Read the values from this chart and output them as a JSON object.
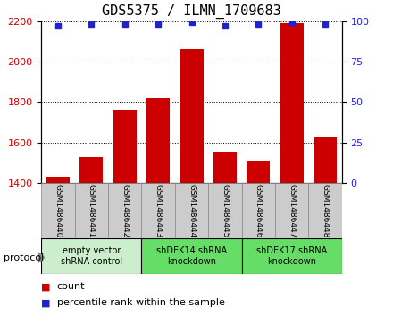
{
  "title": "GDS5375 / ILMN_1709683",
  "samples": [
    "GSM1486440",
    "GSM1486441",
    "GSM1486442",
    "GSM1486443",
    "GSM1486444",
    "GSM1486445",
    "GSM1486446",
    "GSM1486447",
    "GSM1486448"
  ],
  "counts": [
    1430,
    1530,
    1760,
    1820,
    2060,
    1555,
    1510,
    2190,
    1630
  ],
  "percentile_ranks": [
    97,
    98,
    98,
    98,
    99,
    97,
    98,
    99,
    98
  ],
  "ylim_left": [
    1400,
    2200
  ],
  "ylim_right": [
    0,
    100
  ],
  "yticks_left": [
    1400,
    1600,
    1800,
    2000,
    2200
  ],
  "yticks_right": [
    0,
    25,
    50,
    75,
    100
  ],
  "bar_color": "#cc0000",
  "dot_color": "#2222cc",
  "grid_color": "#000000",
  "title_fontsize": 11,
  "groups": [
    {
      "label": "empty vector\nshRNA control",
      "samples": [
        0,
        1,
        2
      ],
      "color": "#cceecc"
    },
    {
      "label": "shDEK14 shRNA\nknockdown",
      "samples": [
        3,
        4,
        5
      ],
      "color": "#66dd66"
    },
    {
      "label": "shDEK17 shRNA\nknockdown",
      "samples": [
        6,
        7,
        8
      ],
      "color": "#66dd66"
    }
  ],
  "legend_count_label": "count",
  "legend_pct_label": "percentile rank within the sample",
  "protocol_label": "protocol",
  "sample_bg_color": "#cccccc",
  "sample_border_color": "#888888"
}
